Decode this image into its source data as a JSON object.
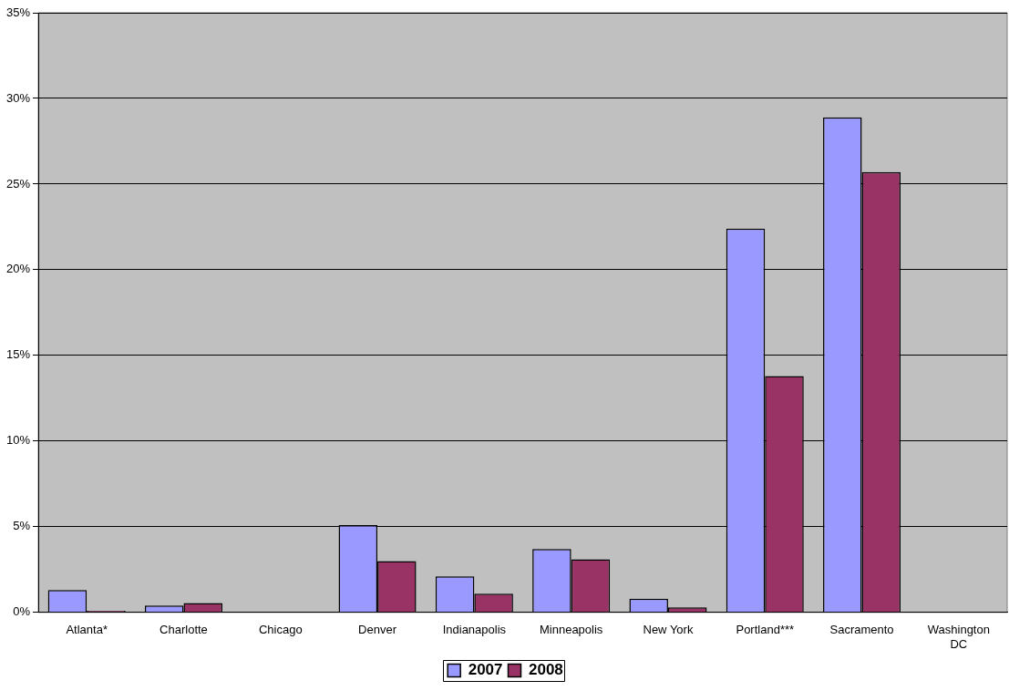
{
  "chart_data": {
    "type": "bar",
    "categories": [
      "Atlanta*",
      "Charlotte",
      "Chicago",
      "Denver",
      "Indianapolis",
      "Minneapolis",
      "New York",
      "Portland***",
      "Sacramento",
      "Washington DC"
    ],
    "series": [
      {
        "name": "2007",
        "color": "#9999ff",
        "values": [
          1.3,
          0.4,
          null,
          5.1,
          2.1,
          3.7,
          0.8,
          22.4,
          28.9,
          null
        ]
      },
      {
        "name": "2008",
        "color": "#993366",
        "values": [
          0.1,
          0.55,
          null,
          3.0,
          1.1,
          3.1,
          0.3,
          13.8,
          25.7,
          null
        ]
      }
    ],
    "ylim": [
      0,
      35
    ],
    "yticks": [
      {
        "value": 0,
        "label": "0%"
      },
      {
        "value": 5,
        "label": "5%"
      },
      {
        "value": 10,
        "label": "10%"
      },
      {
        "value": 15,
        "label": "15%"
      },
      {
        "value": 20,
        "label": "20%"
      },
      {
        "value": 25,
        "label": "25%"
      },
      {
        "value": 30,
        "label": "30%"
      },
      {
        "value": 35,
        "label": "35%"
      }
    ],
    "grid": "y",
    "legend": "bottom"
  }
}
